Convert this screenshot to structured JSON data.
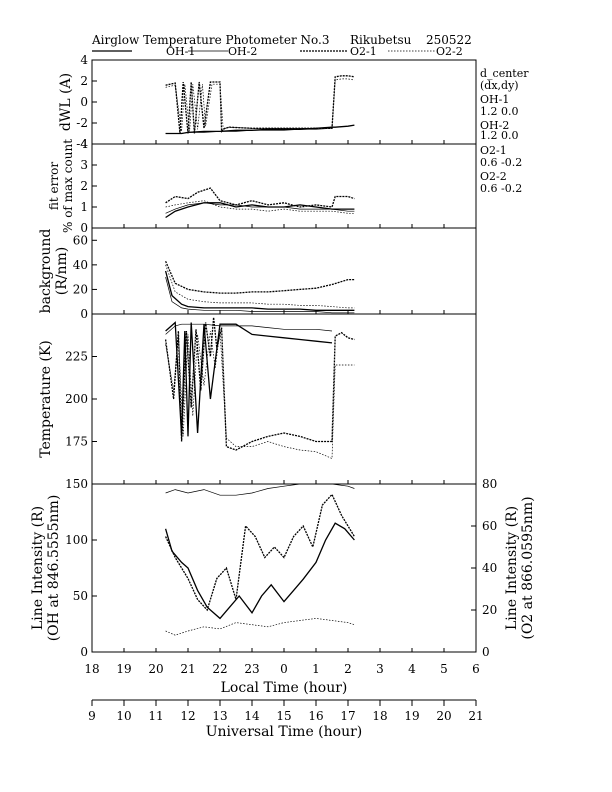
{
  "title": {
    "text": "Airglow Temperature Photometer No.3",
    "site": "Rikubetsu",
    "date": "250522"
  },
  "legend": [
    {
      "label": "OH-1",
      "style": "solid"
    },
    {
      "label": "OH-2",
      "style": "solid-thin"
    },
    {
      "label": "O2-1",
      "style": "dotted-heavy"
    },
    {
      "label": "O2-2",
      "style": "dotted-light"
    }
  ],
  "side_annotations": {
    "header": "d_center",
    "subheader": "(dx,dy)",
    "entries": [
      {
        "label": "OH-1",
        "value": "1.2   0.0"
      },
      {
        "label": "OH-2",
        "value": "1.2   0.0"
      },
      {
        "label": "O2-1",
        "value": "0.6   -0.2"
      },
      {
        "label": "O2-2",
        "value": "0.6   -0.2"
      }
    ]
  },
  "chart_data": [
    {
      "type": "line",
      "panel": "dWL",
      "ylabel": "dWL  (A)",
      "ylim": [
        -4,
        4
      ],
      "yticks": [
        "4",
        "2",
        "0",
        "-2",
        "-4"
      ],
      "series": [
        {
          "name": "OH-1",
          "x": [
            20.3,
            20.8,
            21.0,
            21.5,
            22.0,
            22.5,
            23.0,
            23.5,
            24.0,
            24.5,
            25.0,
            25.5,
            25.6,
            26.0,
            26.2
          ],
          "y": [
            -3.0,
            -3.0,
            -2.9,
            -2.8,
            -2.8,
            -2.7,
            -2.7,
            -2.6,
            -2.6,
            -2.6,
            -2.5,
            -2.4,
            -2.4,
            -2.3,
            -2.2
          ]
        },
        {
          "name": "OH-2",
          "x": [
            20.3,
            20.8,
            21.0,
            21.5,
            22.0,
            22.5,
            23.0,
            23.5,
            24.0,
            24.5,
            25.0,
            25.5
          ],
          "y": [
            -3.0,
            -3.0,
            -2.9,
            -2.9,
            -2.8,
            -2.8,
            -2.7,
            -2.7,
            -2.7,
            -2.6,
            -2.6,
            -2.5
          ]
        },
        {
          "name": "O2-1",
          "x": [
            20.3,
            20.6,
            20.75,
            20.85,
            21.0,
            21.1,
            21.2,
            21.35,
            21.5,
            21.7,
            22.0,
            22.05,
            22.15,
            22.3,
            23.0,
            24.0,
            25.0,
            25.5,
            25.6,
            25.8,
            26.0,
            26.2
          ],
          "y": [
            1.6,
            1.8,
            -3.0,
            1.9,
            -3.0,
            1.9,
            -3.0,
            1.9,
            -2.5,
            1.9,
            1.9,
            -2.8,
            -2.5,
            -2.4,
            -2.5,
            -2.5,
            -2.5,
            -2.5,
            2.4,
            2.5,
            2.5,
            2.4
          ]
        },
        {
          "name": "O2-2",
          "x": [
            20.3,
            20.6,
            20.8,
            20.9,
            21.05,
            21.15,
            21.3,
            21.45,
            21.55,
            21.75,
            22.0,
            22.1,
            22.25,
            23.0,
            24.0,
            25.0,
            25.5,
            25.6,
            25.8,
            26.0,
            26.2
          ],
          "y": [
            1.4,
            1.6,
            -2.8,
            1.7,
            -2.8,
            1.7,
            -2.6,
            1.7,
            -2.3,
            1.7,
            1.7,
            -2.6,
            -2.4,
            -2.5,
            -2.5,
            -2.5,
            -2.4,
            2.1,
            2.2,
            2.2,
            2.1
          ]
        }
      ]
    },
    {
      "type": "line",
      "panel": "fit-error",
      "ylabel": "fit error",
      "ylabel2": "% of max count",
      "ylim": [
        0,
        4
      ],
      "yticks": [
        "4",
        "3",
        "2",
        "1",
        "0"
      ],
      "series": [
        {
          "name": "OH-1",
          "x": [
            20.3,
            20.6,
            21.0,
            21.5,
            22.0,
            22.5,
            23.0,
            23.5,
            24.0,
            24.5,
            25.0,
            25.5,
            26.0,
            26.2
          ],
          "y": [
            0.5,
            0.8,
            1.0,
            1.2,
            1.2,
            1.0,
            1.1,
            1.0,
            1.0,
            1.1,
            1.0,
            0.9,
            0.9,
            0.9
          ]
        },
        {
          "name": "OH-2",
          "x": [
            20.3,
            20.6,
            21.0,
            21.5,
            22.0,
            22.5,
            23.0,
            23.5,
            24.0,
            24.5,
            25.0,
            25.5,
            26.0,
            26.2
          ],
          "y": [
            0.7,
            0.9,
            1.1,
            1.2,
            1.1,
            1.1,
            1.0,
            1.0,
            1.0,
            0.9,
            0.9,
            0.9,
            0.8,
            0.8
          ]
        },
        {
          "name": "O2-1",
          "x": [
            20.3,
            20.6,
            21.0,
            21.3,
            21.7,
            22.0,
            22.5,
            23.0,
            23.5,
            24.0,
            24.5,
            25.0,
            25.5,
            25.6,
            26.0,
            26.2
          ],
          "y": [
            1.2,
            1.5,
            1.4,
            1.7,
            1.9,
            1.3,
            1.1,
            1.3,
            1.1,
            1.2,
            1.0,
            1.1,
            1.0,
            1.5,
            1.5,
            1.4
          ]
        },
        {
          "name": "O2-2",
          "x": [
            20.3,
            20.6,
            21.0,
            21.5,
            22.0,
            22.5,
            23.0,
            23.5,
            24.0,
            24.5,
            25.0,
            25.5,
            26.0,
            26.2
          ],
          "y": [
            1.0,
            1.1,
            1.2,
            1.3,
            1.0,
            0.9,
            0.9,
            0.8,
            0.9,
            0.8,
            0.8,
            0.8,
            0.7,
            0.7
          ]
        }
      ]
    },
    {
      "type": "line",
      "panel": "background",
      "ylabel": "background",
      "ylabel2": "(R/nm)",
      "ylim": [
        0,
        70
      ],
      "yticks": [
        "60",
        "40",
        "20",
        "0"
      ],
      "series": [
        {
          "name": "OH-1",
          "x": [
            20.3,
            20.5,
            20.8,
            21.0,
            21.5,
            22.0,
            22.5,
            23.0,
            23.5,
            24.0,
            24.5,
            25.0,
            25.5,
            26.0,
            26.2
          ],
          "y": [
            35,
            15,
            8,
            6,
            5,
            5,
            5,
            5,
            4,
            4,
            4,
            3,
            3,
            3,
            3
          ]
        },
        {
          "name": "OH-2",
          "x": [
            20.3,
            20.5,
            20.8,
            21.0,
            21.5,
            22.0,
            22.5,
            23.0,
            23.5,
            24.0,
            24.5,
            25.0,
            25.5,
            26.0,
            26.2
          ],
          "y": [
            30,
            10,
            5,
            4,
            3,
            3,
            3,
            2,
            2,
            2,
            2,
            2,
            1,
            1,
            1
          ]
        },
        {
          "name": "O2-1",
          "x": [
            20.3,
            20.6,
            21.0,
            21.5,
            22.0,
            22.5,
            23.0,
            23.5,
            24.0,
            24.5,
            25.0,
            25.5,
            26.0,
            26.2
          ],
          "y": [
            43,
            25,
            20,
            18,
            17,
            17,
            18,
            18,
            19,
            20,
            21,
            24,
            28,
            28
          ]
        },
        {
          "name": "O2-2",
          "x": [
            20.3,
            20.6,
            21.0,
            21.5,
            22.0,
            22.5,
            23.0,
            23.5,
            24.0,
            24.5,
            25.0,
            25.5,
            26.0,
            26.2
          ],
          "y": [
            40,
            18,
            12,
            10,
            9,
            9,
            9,
            8,
            8,
            7,
            7,
            6,
            5,
            5
          ]
        }
      ]
    },
    {
      "type": "line",
      "panel": "temperature",
      "ylabel": "Temperature (K)",
      "ylim": [
        150,
        250
      ],
      "yticks": [
        "225",
        "200",
        "175"
      ],
      "series": [
        {
          "name": "OH-1",
          "x": [
            20.3,
            20.6,
            20.8,
            20.9,
            21.0,
            21.1,
            21.3,
            21.5,
            21.7,
            22.0,
            22.5,
            23.0,
            23.5,
            24.0,
            24.5,
            25.0,
            25.5
          ],
          "y": [
            240,
            245,
            178,
            240,
            178,
            245,
            180,
            244,
            200,
            244,
            244,
            238,
            237,
            236,
            235,
            234,
            233
          ]
        },
        {
          "name": "OH-2",
          "x": [
            20.3,
            20.6,
            20.8,
            21.0,
            21.5,
            22.0,
            22.5,
            23.0,
            23.5,
            24.0,
            24.5,
            25.0,
            25.5
          ],
          "y": [
            238,
            243,
            244,
            244,
            244,
            243,
            243,
            243,
            242,
            241,
            241,
            241,
            240
          ]
        },
        {
          "name": "O2-1",
          "x": [
            20.3,
            20.55,
            20.7,
            20.8,
            20.95,
            21.1,
            21.25,
            21.4,
            21.55,
            21.7,
            21.8,
            21.9,
            22.05,
            22.2,
            22.5,
            23.0,
            23.5,
            24.0,
            24.5,
            25.0,
            25.5,
            25.6,
            25.8,
            26.0,
            26.2
          ],
          "y": [
            235,
            200,
            240,
            175,
            240,
            195,
            241,
            205,
            245,
            225,
            248,
            230,
            242,
            172,
            170,
            175,
            178,
            180,
            178,
            175,
            175,
            237,
            239,
            236,
            235
          ]
        },
        {
          "name": "O2-2",
          "x": [
            20.3,
            20.55,
            20.7,
            20.85,
            21.0,
            21.15,
            21.3,
            21.5,
            21.7,
            21.85,
            22.0,
            22.2,
            22.5,
            23.0,
            23.5,
            24.0,
            24.5,
            25.0,
            25.5,
            25.6,
            25.8,
            26.0,
            26.2
          ],
          "y": [
            232,
            205,
            238,
            178,
            238,
            190,
            238,
            208,
            240,
            218,
            240,
            177,
            172,
            172,
            175,
            172,
            170,
            169,
            165,
            220,
            220,
            220,
            220
          ]
        }
      ]
    },
    {
      "type": "line",
      "panel": "line-intensity",
      "ylabel": "Line Intensity (R)",
      "ylabel2": "(OH at 846.5555nm)",
      "ylabel_right": "Line Intensity (R)",
      "ylabel_right2": "(O2 at 866.0595nm)",
      "ylim": [
        0,
        150
      ],
      "ylim_right": [
        0,
        80
      ],
      "yticks": [
        "150",
        "100",
        "50",
        "0"
      ],
      "yticks_right": [
        "80",
        "60",
        "40",
        "20",
        "0"
      ],
      "series": [
        {
          "name": "OH-1",
          "axis": "left",
          "x": [
            20.3,
            20.5,
            20.8,
            21.0,
            21.3,
            21.6,
            22.0,
            22.3,
            22.6,
            23.0,
            23.3,
            23.6,
            24.0,
            24.3,
            24.6,
            25.0,
            25.3,
            25.6,
            25.9,
            26.2
          ],
          "y": [
            110,
            90,
            80,
            75,
            55,
            40,
            30,
            40,
            50,
            35,
            50,
            60,
            45,
            55,
            65,
            80,
            100,
            115,
            110,
            100
          ]
        },
        {
          "name": "OH-2",
          "axis": "left",
          "x": [
            20.3,
            20.6,
            21.0,
            21.5,
            22.0,
            22.5,
            23.0,
            23.5,
            24.0,
            24.5,
            25.0,
            25.5,
            26.0,
            26.2
          ],
          "y": [
            142,
            145,
            142,
            145,
            140,
            140,
            142,
            146,
            148,
            150,
            150,
            150,
            148,
            146
          ]
        },
        {
          "name": "O2-1",
          "axis": "right",
          "x": [
            20.3,
            20.6,
            20.8,
            21.0,
            21.3,
            21.6,
            21.9,
            22.2,
            22.5,
            22.8,
            23.1,
            23.4,
            23.7,
            24.0,
            24.3,
            24.6,
            24.9,
            25.2,
            25.5,
            25.8,
            26.0,
            26.2
          ],
          "y": [
            55,
            45,
            40,
            35,
            25,
            20,
            35,
            40,
            25,
            60,
            55,
            45,
            50,
            45,
            55,
            60,
            50,
            70,
            75,
            65,
            60,
            55
          ]
        },
        {
          "name": "O2-2",
          "axis": "right",
          "x": [
            20.3,
            20.6,
            21.0,
            21.5,
            22.0,
            22.5,
            23.0,
            23.5,
            24.0,
            24.5,
            25.0,
            25.5,
            26.0,
            26.2
          ],
          "y": [
            10,
            8,
            10,
            12,
            11,
            14,
            13,
            12,
            14,
            15,
            16,
            15,
            14,
            13
          ]
        }
      ]
    }
  ],
  "x_axes": {
    "local": {
      "label": "Local Time (hour)",
      "ticks": [
        "18",
        "19",
        "20",
        "21",
        "22",
        "23",
        "0",
        "1",
        "2",
        "3",
        "4",
        "5",
        "6"
      ]
    },
    "universal": {
      "label": "Universal Time (hour)",
      "ticks": [
        "9",
        "10",
        "11",
        "12",
        "13",
        "14",
        "15",
        "16",
        "17",
        "18",
        "19",
        "20",
        "21"
      ]
    }
  }
}
